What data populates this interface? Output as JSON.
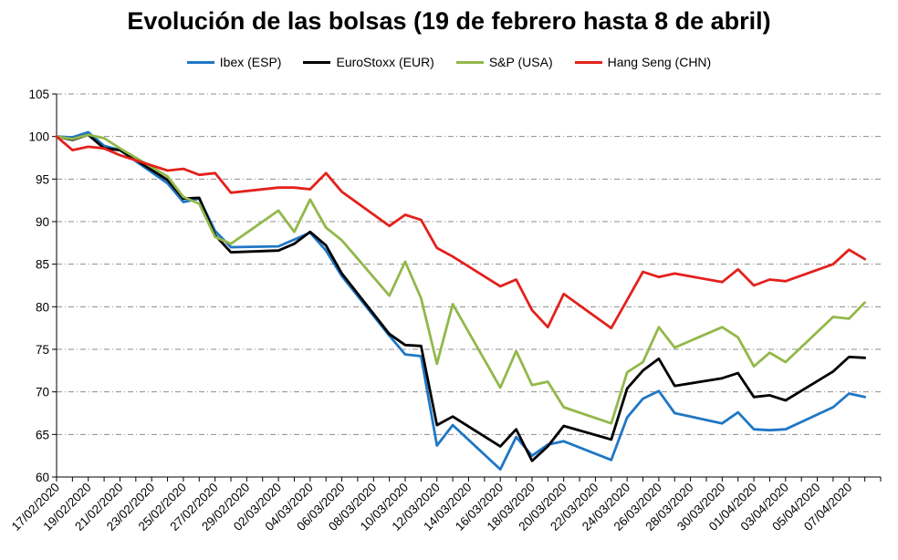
{
  "chart_data": {
    "type": "line",
    "title": "Evolución de las bolsas (19 de febrero hasta 8 de abril)",
    "xlabel": "",
    "ylabel": "",
    "ylim": [
      60,
      105
    ],
    "yticks": [
      60,
      65,
      70,
      75,
      80,
      85,
      90,
      95,
      100,
      105
    ],
    "grid": true,
    "legend_position": "top",
    "xlim": [
      "2020-02-17",
      "2020-04-09"
    ],
    "xtick_labels": [
      "17/02/2020",
      "19/02/2020",
      "21/02/2020",
      "23/02/2020",
      "25/02/2020",
      "27/02/2020",
      "29/02/2020",
      "02/03/2020",
      "04/03/2020",
      "06/03/2020",
      "08/03/2020",
      "10/03/2020",
      "12/03/2020",
      "14/03/2020",
      "16/03/2020",
      "18/03/2020",
      "20/03/2020",
      "22/03/2020",
      "24/03/2020",
      "26/03/2020",
      "28/03/2020",
      "30/03/2020",
      "01/04/2020",
      "03/04/2020",
      "05/04/2020",
      "07/04/2020"
    ],
    "x": [
      "2020-02-17",
      "2020-02-18",
      "2020-02-19",
      "2020-02-20",
      "2020-02-21",
      "2020-02-24",
      "2020-02-25",
      "2020-02-26",
      "2020-02-27",
      "2020-02-28",
      "2020-03-02",
      "2020-03-03",
      "2020-03-04",
      "2020-03-05",
      "2020-03-06",
      "2020-03-09",
      "2020-03-10",
      "2020-03-11",
      "2020-03-12",
      "2020-03-13",
      "2020-03-16",
      "2020-03-17",
      "2020-03-18",
      "2020-03-19",
      "2020-03-20",
      "2020-03-23",
      "2020-03-24",
      "2020-03-25",
      "2020-03-26",
      "2020-03-27",
      "2020-03-30",
      "2020-03-31",
      "2020-04-01",
      "2020-04-02",
      "2020-04-03",
      "2020-04-06",
      "2020-04-07",
      "2020-04-08"
    ],
    "series": [
      {
        "name": "Ibex (ESP)",
        "color": "#1f77c4",
        "values": [
          100.0,
          99.9,
          100.5,
          98.9,
          98.4,
          94.5,
          92.3,
          92.7,
          88.9,
          87.0,
          87.1,
          87.9,
          88.7,
          86.6,
          83.6,
          76.6,
          74.4,
          74.2,
          63.7,
          66.1,
          60.9,
          64.7,
          62.5,
          63.8,
          64.2,
          62.0,
          67.0,
          69.2,
          70.1,
          67.5,
          66.3,
          67.6,
          65.6,
          65.5,
          65.6,
          68.2,
          69.8,
          69.4
        ]
      },
      {
        "name": "EuroStoxx (EUR)",
        "color": "#000000",
        "values": [
          100.0,
          99.6,
          100.2,
          98.6,
          98.4,
          94.9,
          92.7,
          92.8,
          88.4,
          86.4,
          86.6,
          87.4,
          88.8,
          87.2,
          83.9,
          76.8,
          75.5,
          75.4,
          66.1,
          67.1,
          63.6,
          65.6,
          61.9,
          63.6,
          66.0,
          64.4,
          70.4,
          72.5,
          73.9,
          70.7,
          71.6,
          72.2,
          69.4,
          69.6,
          69.0,
          72.4,
          74.1,
          74.0
        ]
      },
      {
        "name": "S&P (USA)",
        "color": "#92b84a",
        "values": [
          100.0,
          99.7,
          100.2,
          99.8,
          98.6,
          95.3,
          92.9,
          92.1,
          88.2,
          87.4,
          91.3,
          88.8,
          92.6,
          89.3,
          87.8,
          81.3,
          85.3,
          81.0,
          73.3,
          80.3,
          70.5,
          74.8,
          70.8,
          71.2,
          68.2,
          66.3,
          72.3,
          73.5,
          77.6,
          75.2,
          77.6,
          76.4,
          73.0,
          74.6,
          73.5,
          78.8,
          78.6,
          80.5
        ]
      },
      {
        "name": "Hang Seng (CHN)",
        "color": "#e3211c",
        "values": [
          100.0,
          98.4,
          98.8,
          98.6,
          97.8,
          96.0,
          96.2,
          95.5,
          95.7,
          93.4,
          94.0,
          94.0,
          93.8,
          95.7,
          93.5,
          89.5,
          90.8,
          90.2,
          86.9,
          85.9,
          82.4,
          83.2,
          79.6,
          77.6,
          81.5,
          77.5,
          80.8,
          84.1,
          83.5,
          83.9,
          82.9,
          84.4,
          82.5,
          83.2,
          83.0,
          85.0,
          86.7,
          85.6
        ]
      }
    ]
  }
}
